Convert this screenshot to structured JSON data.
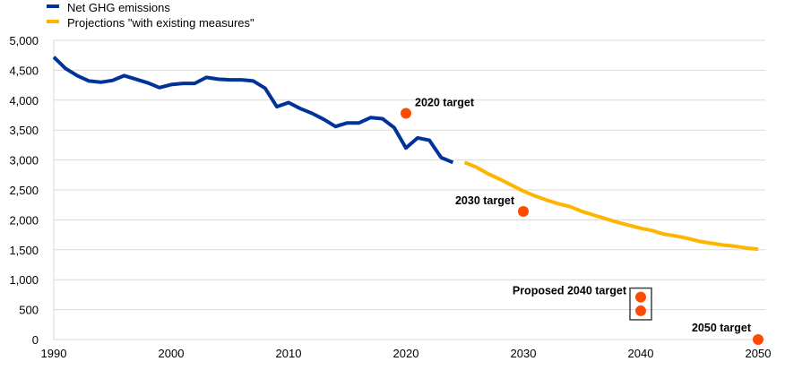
{
  "chart_data": {
    "type": "line",
    "title": "",
    "xlabel": "",
    "ylabel": "",
    "xlim": [
      1990,
      2050
    ],
    "ylim": [
      0,
      5000
    ],
    "grid": "horizontal",
    "legend_placement": "top-left",
    "x_ticks": [
      "1990",
      "2000",
      "2010",
      "2020",
      "2030",
      "2040",
      "2050"
    ],
    "y_ticks": [
      "0",
      "500",
      "1,000",
      "1,500",
      "2,000",
      "2,500",
      "3,000",
      "3,500",
      "4,000",
      "4,500",
      "5,000"
    ],
    "series": [
      {
        "name": "Net GHG emissions",
        "color": "#003399",
        "x": [
          1990,
          1991,
          1992,
          1993,
          1994,
          1995,
          1996,
          1997,
          1998,
          1999,
          2000,
          2001,
          2002,
          2003,
          2004,
          2005,
          2006,
          2007,
          2008,
          2009,
          2010,
          2011,
          2012,
          2013,
          2014,
          2015,
          2016,
          2017,
          2018,
          2019,
          2020,
          2021,
          2022,
          2023,
          2024
        ],
        "values": [
          4720,
          4530,
          4410,
          4320,
          4300,
          4330,
          4410,
          4350,
          4290,
          4210,
          4260,
          4280,
          4280,
          4380,
          4350,
          4340,
          4340,
          4320,
          4200,
          3890,
          3960,
          3860,
          3780,
          3680,
          3560,
          3620,
          3620,
          3710,
          3690,
          3540,
          3200,
          3370,
          3330,
          3040,
          2960
        ]
      },
      {
        "name": "Projections \"with existing measures\"",
        "color": "#FFB400",
        "x": [
          2025,
          2026,
          2027,
          2028,
          2029,
          2030,
          2031,
          2032,
          2033,
          2034,
          2035,
          2036,
          2037,
          2038,
          2039,
          2040,
          2041,
          2042,
          2043,
          2044,
          2045,
          2046,
          2047,
          2048,
          2049,
          2050
        ],
        "values": [
          2960,
          2880,
          2770,
          2680,
          2580,
          2480,
          2400,
          2330,
          2270,
          2220,
          2140,
          2080,
          2020,
          1960,
          1910,
          1860,
          1820,
          1760,
          1730,
          1690,
          1640,
          1610,
          1580,
          1560,
          1530,
          1510
        ]
      }
    ],
    "targets": {
      "color": "#FF4B00",
      "points": [
        {
          "label": "2020 target",
          "x": 2020,
          "y": 3780
        },
        {
          "label": "2030 target",
          "x": 2030,
          "y": 2140
        },
        {
          "label": "Proposed 2040 target",
          "x": 2040,
          "y": 710,
          "y2": 480
        },
        {
          "label": "2050 target",
          "x": 2050,
          "y": 0
        }
      ]
    }
  }
}
